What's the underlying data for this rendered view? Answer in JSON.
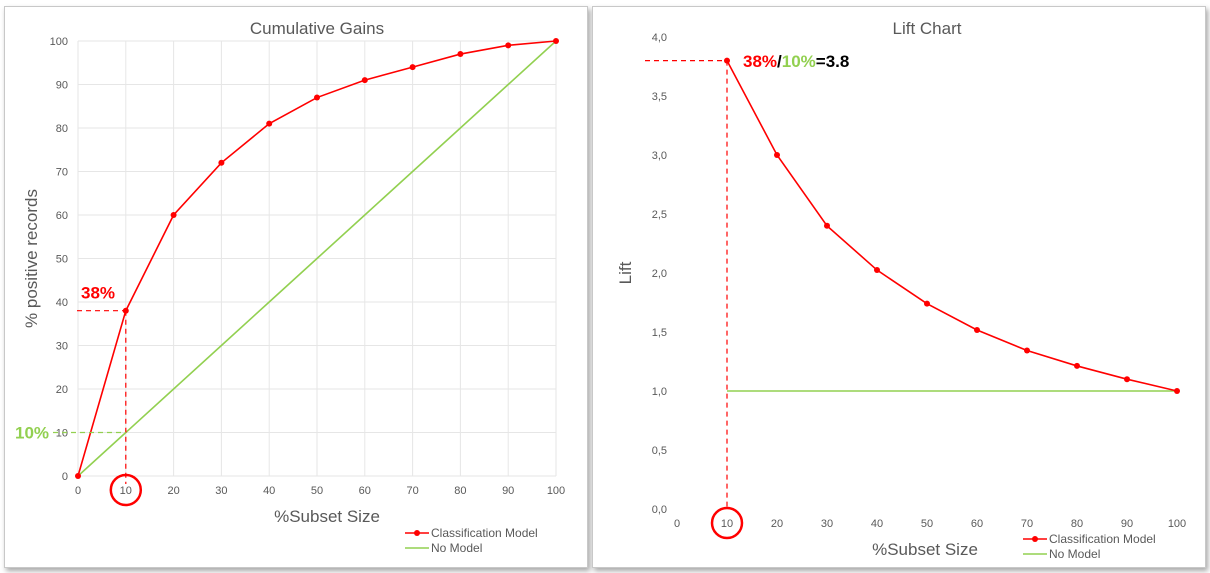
{
  "chart_data": [
    {
      "type": "line",
      "title": "Cumulative Gains",
      "xlabel": "%Subset Size",
      "ylabel": "% positive records",
      "x": [
        0,
        10,
        20,
        30,
        40,
        50,
        60,
        70,
        80,
        90,
        100
      ],
      "xlim": [
        0,
        100
      ],
      "ylim": [
        0,
        100
      ],
      "x_ticks": [
        "0",
        "10",
        "20",
        "30",
        "40",
        "50",
        "60",
        "70",
        "80",
        "90",
        "100"
      ],
      "y_ticks": [
        "0",
        "10",
        "20",
        "30",
        "40",
        "50",
        "60",
        "70",
        "80",
        "90",
        "100"
      ],
      "grid": true,
      "legend_position": "bottom-right",
      "series": [
        {
          "name": "Classification Model",
          "color": "#ff0000",
          "markers": true,
          "values": [
            0,
            38,
            60,
            72,
            81,
            87,
            91,
            94,
            97,
            99,
            100
          ]
        },
        {
          "name": "No Model",
          "color": "#92d050",
          "markers": false,
          "values": [
            0,
            10,
            20,
            30,
            40,
            50,
            60,
            70,
            80,
            90,
            100
          ]
        }
      ],
      "annotations": [
        {
          "text": "38%",
          "color": "#ff0000"
        },
        {
          "text": "10%",
          "color": "#92d050"
        }
      ],
      "highlight_x": 10
    },
    {
      "type": "line",
      "title": "Lift Chart",
      "xlabel": "%Subset Size",
      "ylabel": "Lift",
      "x": [
        10,
        20,
        30,
        40,
        50,
        60,
        70,
        80,
        90,
        100
      ],
      "xlim": [
        0,
        100
      ],
      "ylim": [
        0,
        4
      ],
      "x_ticks": [
        "0",
        "10",
        "20",
        "30",
        "40",
        "50",
        "60",
        "70",
        "80",
        "90",
        "100"
      ],
      "y_ticks": [
        "0,0",
        "0,5",
        "1,0",
        "1,5",
        "2,0",
        "2,5",
        "3,0",
        "3,5",
        "4,0"
      ],
      "grid": false,
      "legend_position": "bottom-right",
      "series": [
        {
          "name": "Classification Model",
          "color": "#ff0000",
          "markers": true,
          "values": [
            3.8,
            3.0,
            2.4,
            2.025,
            1.74,
            1.517,
            1.343,
            1.2125,
            1.1,
            1.0
          ]
        },
        {
          "name": "No Model",
          "color": "#92d050",
          "markers": false,
          "values": [
            1,
            1,
            1,
            1,
            1,
            1,
            1,
            1,
            1,
            1
          ]
        }
      ],
      "annotation_parts": [
        {
          "text": "38%",
          "color": "#ff0000"
        },
        {
          "text": "/",
          "color": "#000000"
        },
        {
          "text": "10%",
          "color": "#92d050"
        },
        {
          "text": "=3.8",
          "color": "#000000"
        }
      ],
      "highlight_x": 10
    }
  ]
}
